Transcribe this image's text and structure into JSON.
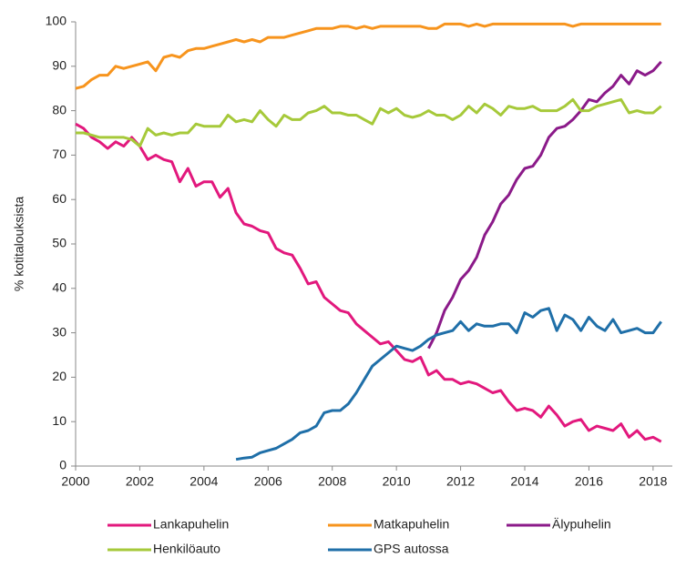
{
  "chart_data": {
    "type": "line",
    "y_label": "% kotitalouksista",
    "x": [
      2000,
      2000.25,
      2000.5,
      2000.75,
      2001,
      2001.25,
      2001.5,
      2001.75,
      2002,
      2002.25,
      2002.5,
      2002.75,
      2003,
      2003.25,
      2003.5,
      2003.75,
      2004,
      2004.25,
      2004.5,
      2004.75,
      2005,
      2005.25,
      2005.5,
      2005.75,
      2006,
      2006.25,
      2006.5,
      2006.75,
      2007,
      2007.25,
      2007.5,
      2007.75,
      2008,
      2008.25,
      2008.5,
      2008.75,
      2009,
      2009.25,
      2009.5,
      2009.75,
      2010,
      2010.25,
      2010.5,
      2010.75,
      2011,
      2011.25,
      2011.5,
      2011.75,
      2012,
      2012.25,
      2012.5,
      2012.75,
      2013,
      2013.25,
      2013.5,
      2013.75,
      2014,
      2014.25,
      2014.5,
      2014.75,
      2015,
      2015.25,
      2015.5,
      2015.75,
      2016,
      2016.25,
      2016.5,
      2016.75,
      2017,
      2017.25,
      2017.5,
      2017.75,
      2018,
      2018.25
    ],
    "series": [
      {
        "name": "Lankapuhelin",
        "color": "#e2187d",
        "values": [
          77,
          76,
          74,
          73,
          71.5,
          73,
          72,
          74,
          72,
          69,
          70,
          69,
          68.5,
          64,
          67,
          63,
          64,
          64,
          60.5,
          62.5,
          57,
          54.5,
          54,
          53,
          52.5,
          49,
          48,
          47.5,
          44.5,
          41,
          41.5,
          38,
          36.5,
          35,
          34.5,
          32,
          30.5,
          29,
          27.5,
          28,
          26,
          24,
          23.5,
          24.5,
          20.5,
          21.5,
          19.5,
          19.5,
          18.5,
          19,
          18.5,
          17.5,
          16.5,
          17,
          14.5,
          12.5,
          13,
          12.5,
          11,
          13.5,
          11.5,
          9,
          10,
          10.5,
          8,
          9,
          8.5,
          8,
          9.5,
          6.5,
          8,
          6,
          6.5,
          5.5
        ]
      },
      {
        "name": "Matkapuhelin",
        "color": "#f7941d",
        "values": [
          85,
          85.5,
          87,
          88,
          88,
          90,
          89.5,
          90,
          90.5,
          91,
          89,
          92,
          92.5,
          92,
          93.5,
          94,
          94,
          94.5,
          95,
          95.5,
          96,
          95.5,
          96,
          95.5,
          96.5,
          96.5,
          96.5,
          97,
          97.5,
          98,
          98.5,
          98.5,
          98.5,
          99,
          99,
          98.5,
          99,
          98.5,
          99,
          99,
          99,
          99,
          99,
          99,
          98.5,
          98.5,
          99.5,
          99.5,
          99.5,
          99,
          99.5,
          99,
          99.5,
          99.5,
          99.5,
          99.5,
          99.5,
          99.5,
          99.5,
          99.5,
          99.5,
          99.5,
          99,
          99.5,
          99.5,
          99.5,
          99.5,
          99.5,
          99.5,
          99.5,
          99.5,
          99.5,
          99.5,
          99.5
        ]
      },
      {
        "name": "Älypuhelin",
        "color": "#8b1a89",
        "values": [
          null,
          null,
          null,
          null,
          null,
          null,
          null,
          null,
          null,
          null,
          null,
          null,
          null,
          null,
          null,
          null,
          null,
          null,
          null,
          null,
          null,
          null,
          null,
          null,
          null,
          null,
          null,
          null,
          null,
          null,
          null,
          null,
          null,
          null,
          null,
          null,
          null,
          null,
          null,
          null,
          null,
          null,
          null,
          null,
          26.5,
          30,
          35,
          38,
          42,
          44,
          47,
          52,
          55,
          59,
          61,
          64.5,
          67,
          67.5,
          70,
          74,
          76,
          76.5,
          78,
          80,
          82.5,
          82,
          84,
          85.5,
          88,
          86,
          89,
          88,
          89,
          91
        ]
      },
      {
        "name": "Henkilöauto",
        "color": "#a6c93a",
        "values": [
          75,
          75,
          74.5,
          74,
          74,
          74,
          74,
          73.5,
          72,
          76,
          74.5,
          75,
          74.5,
          75,
          75,
          77,
          76.5,
          76.5,
          76.5,
          79,
          77.5,
          78,
          77.5,
          80,
          78,
          76.5,
          79,
          78,
          78,
          79.5,
          80,
          81,
          79.5,
          79.5,
          79,
          79,
          78,
          77,
          80.5,
          79.5,
          80.5,
          79,
          78.5,
          79,
          80,
          79,
          79,
          78,
          79,
          81,
          79.5,
          81.5,
          80.5,
          79,
          81,
          80.5,
          80.5,
          81,
          80,
          80,
          80,
          81,
          82.5,
          80,
          80,
          81,
          81.5,
          82,
          82.5,
          79.5,
          80,
          79.5,
          79.5,
          81
        ]
      },
      {
        "name": "GPS autossa",
        "color": "#1f6fa8",
        "values": [
          null,
          null,
          null,
          null,
          null,
          null,
          null,
          null,
          null,
          null,
          null,
          null,
          null,
          null,
          null,
          null,
          null,
          null,
          null,
          null,
          1.5,
          1.8,
          2,
          3,
          3.5,
          4,
          5,
          6,
          7.5,
          8,
          9,
          12,
          12.5,
          12.5,
          14,
          16.5,
          19.5,
          22.5,
          24,
          25.5,
          27,
          26.5,
          26,
          27,
          28.5,
          29.5,
          30,
          30.5,
          32.5,
          30.5,
          32,
          31.5,
          31.5,
          32,
          32,
          30,
          34.5,
          33.5,
          35,
          35.5,
          30.5,
          34,
          33,
          30.5,
          33.5,
          31.5,
          30.5,
          33,
          30,
          30.5,
          31,
          30,
          30,
          32.5
        ]
      }
    ],
    "xlim": [
      2000,
      2018.6
    ],
    "xticks": [
      2000,
      2002,
      2004,
      2006,
      2008,
      2010,
      2012,
      2014,
      2016,
      2018
    ],
    "ylim": [
      0,
      100
    ],
    "yticks": [
      0,
      10,
      20,
      30,
      40,
      50,
      60,
      70,
      80,
      90,
      100
    ],
    "legend": "bottom"
  }
}
